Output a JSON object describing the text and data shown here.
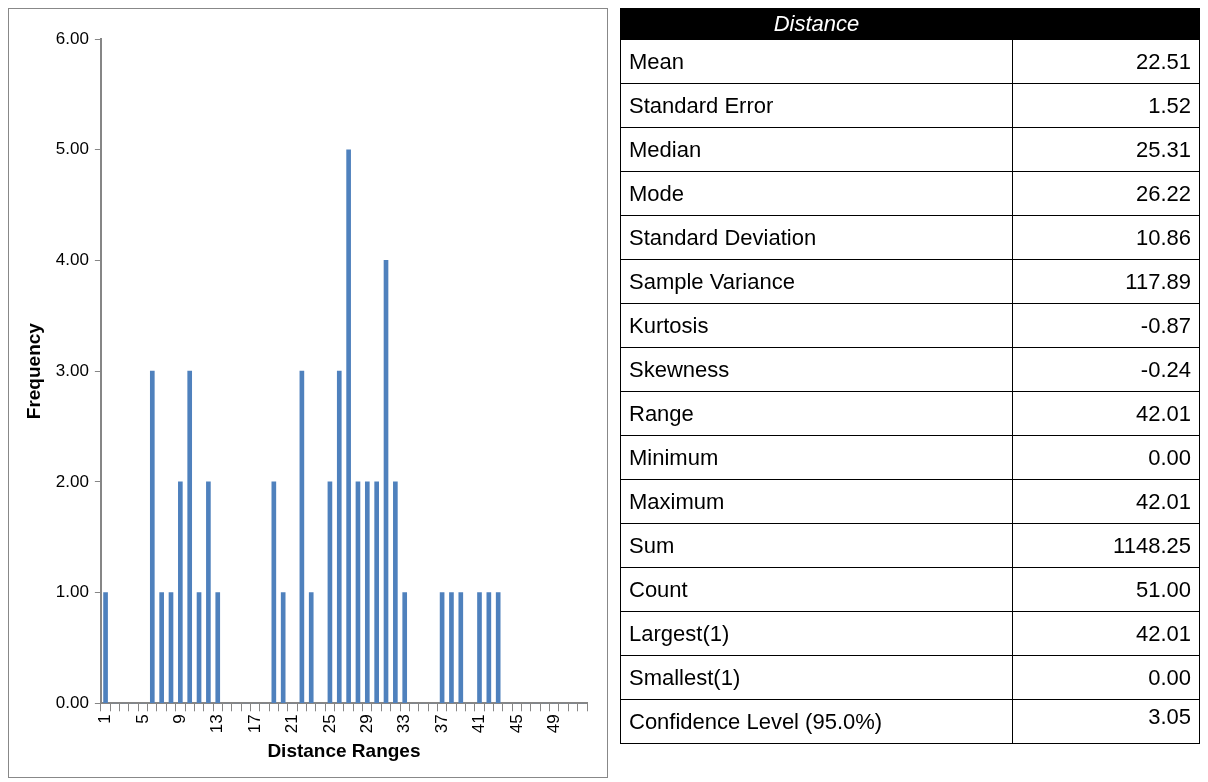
{
  "chart_data": [
    {
      "type": "bar",
      "xlabel": "Distance Ranges",
      "ylabel": "Frequency",
      "categories": [
        "1",
        null,
        null,
        null,
        "5",
        null,
        null,
        null,
        "9",
        null,
        null,
        null,
        "13",
        null,
        null,
        null,
        "17",
        null,
        null,
        null,
        "21",
        null,
        null,
        null,
        "25",
        null,
        null,
        null,
        "29",
        null,
        null,
        null,
        "33",
        null,
        null,
        null,
        "37",
        null,
        null,
        null,
        "41",
        null,
        null,
        null,
        "45",
        null,
        null,
        null,
        "49",
        null,
        null,
        null
      ],
      "values": [
        1,
        0,
        0,
        0,
        0,
        3,
        1,
        1,
        2,
        3,
        1,
        2,
        1,
        0,
        0,
        0,
        0,
        0,
        2,
        1,
        0,
        3,
        1,
        0,
        2,
        3,
        5,
        2,
        2,
        2,
        4,
        2,
        1,
        0,
        0,
        0,
        1,
        1,
        1,
        0,
        1,
        1,
        1,
        0,
        0,
        0,
        0,
        0,
        0,
        0,
        0,
        0
      ],
      "color": "#4f81bd",
      "ylim": [
        0,
        6
      ],
      "yticks": [
        {
          "value": 0,
          "label": "0.00"
        },
        {
          "value": 1,
          "label": "1.00"
        },
        {
          "value": 2,
          "label": "2.00"
        },
        {
          "value": 3,
          "label": "3.00"
        },
        {
          "value": 4,
          "label": "4.00"
        },
        {
          "value": 5,
          "label": "5.00"
        },
        {
          "value": 6,
          "label": "6.00"
        }
      ],
      "grid": false,
      "legend": false
    },
    {
      "type": "other",
      "title": "Distance",
      "categories": [
        "Mean",
        "Standard Error",
        "Median",
        "Mode",
        "Standard Deviation",
        "Sample Variance",
        "Kurtosis",
        "Skewness",
        "Range",
        "Minimum",
        "Maximum",
        "Sum",
        "Count",
        "Largest(1)",
        "Smallest(1)",
        "Confidence Level (95.0%)"
      ],
      "value_labels": [
        "22.51",
        "1.52",
        "25.31",
        "26.22",
        "10.86",
        "117.89",
        "-0.87",
        "-0.24",
        "42.01",
        "0.00",
        "42.01",
        "1148.25",
        "51.00",
        "42.01",
        "0.00",
        "3.05"
      ]
    }
  ]
}
